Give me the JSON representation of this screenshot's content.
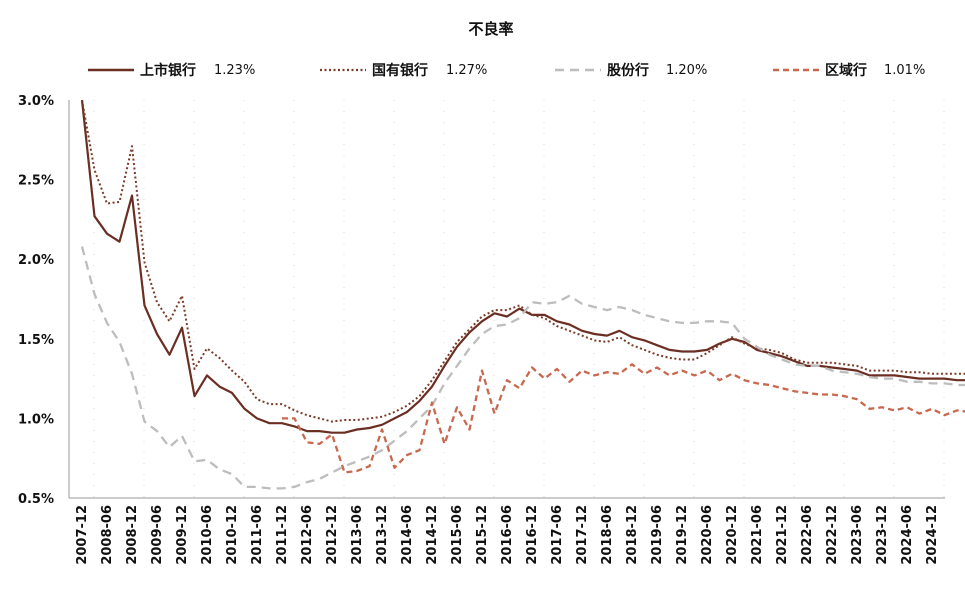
{
  "chart_data": {
    "type": "line",
    "title": "不良率",
    "xlabel": "",
    "ylabel": "",
    "ylim": [
      0.5,
      3.0
    ],
    "yticks": [
      "0.5%",
      "1.0%",
      "1.5%",
      "2.0%",
      "2.5%",
      "3.0%"
    ],
    "grid": true,
    "legend_position": "top",
    "start_quarter": "2007-12",
    "x_tick_labels": [
      "2007-12",
      "2008-06",
      "2008-12",
      "2009-06",
      "2009-12",
      "2010-06",
      "2010-12",
      "2011-06",
      "2011-12",
      "2012-06",
      "2012-12",
      "2013-06",
      "2013-12",
      "2014-06",
      "2014-12",
      "2015-06",
      "2015-12",
      "2016-06",
      "2016-12",
      "2017-06",
      "2017-12",
      "2018-06",
      "2018-12",
      "2019-06",
      "2019-12",
      "2020-06",
      "2020-12",
      "2021-06",
      "2021-12",
      "2022-06",
      "2022-12",
      "2023-06",
      "2023-12",
      "2024-06",
      "2024-12"
    ],
    "series": [
      {
        "name": "上市银行",
        "latest": "1.23%",
        "color": "#6b2e22",
        "style": "solid",
        "values": [
          3.0,
          2.27,
          2.16,
          2.11,
          2.4,
          1.71,
          1.53,
          1.4,
          1.57,
          1.14,
          1.27,
          1.2,
          1.16,
          1.06,
          1.0,
          0.97,
          0.97,
          0.95,
          0.92,
          0.92,
          0.91,
          0.91,
          0.93,
          0.94,
          0.96,
          1.0,
          1.04,
          1.11,
          1.2,
          1.33,
          1.45,
          1.54,
          1.61,
          1.66,
          1.64,
          1.69,
          1.65,
          1.65,
          1.61,
          1.59,
          1.55,
          1.53,
          1.52,
          1.55,
          1.51,
          1.49,
          1.46,
          1.43,
          1.42,
          1.42,
          1.43,
          1.47,
          1.5,
          1.48,
          1.43,
          1.41,
          1.39,
          1.36,
          1.33,
          1.33,
          1.32,
          1.31,
          1.3,
          1.27,
          1.27,
          1.27,
          1.26,
          1.25,
          1.25,
          1.25,
          1.24,
          1.24,
          1.23
        ]
      },
      {
        "name": "国有银行",
        "latest": "1.27%",
        "color": "#7a3b28",
        "style": "dotted",
        "values": [
          3.0,
          2.56,
          2.35,
          2.36,
          2.71,
          1.98,
          1.73,
          1.61,
          1.77,
          1.31,
          1.44,
          1.38,
          1.3,
          1.23,
          1.12,
          1.09,
          1.09,
          1.05,
          1.02,
          1.0,
          0.98,
          0.99,
          0.99,
          1.0,
          1.01,
          1.04,
          1.08,
          1.14,
          1.24,
          1.36,
          1.48,
          1.56,
          1.64,
          1.68,
          1.68,
          1.71,
          1.65,
          1.63,
          1.58,
          1.55,
          1.52,
          1.49,
          1.48,
          1.51,
          1.46,
          1.43,
          1.4,
          1.38,
          1.37,
          1.37,
          1.41,
          1.46,
          1.51,
          1.47,
          1.44,
          1.43,
          1.41,
          1.37,
          1.35,
          1.35,
          1.35,
          1.34,
          1.33,
          1.3,
          1.3,
          1.3,
          1.29,
          1.29,
          1.28,
          1.28,
          1.28,
          1.28,
          1.27
        ]
      },
      {
        "name": "股份行",
        "latest": "1.20%",
        "color": "#bdbdbd",
        "style": "dashed",
        "values": [
          2.08,
          1.78,
          1.6,
          1.48,
          1.28,
          0.98,
          0.92,
          0.82,
          0.89,
          0.73,
          0.74,
          0.68,
          0.65,
          0.57,
          0.57,
          0.56,
          0.56,
          0.57,
          0.6,
          0.62,
          0.66,
          0.7,
          0.73,
          0.76,
          0.8,
          0.86,
          0.92,
          1.0,
          1.08,
          1.22,
          1.33,
          1.44,
          1.53,
          1.58,
          1.59,
          1.63,
          1.73,
          1.72,
          1.73,
          1.77,
          1.72,
          1.7,
          1.68,
          1.7,
          1.68,
          1.65,
          1.63,
          1.61,
          1.6,
          1.6,
          1.61,
          1.61,
          1.6,
          1.5,
          1.45,
          1.4,
          1.37,
          1.34,
          1.33,
          1.33,
          1.3,
          1.29,
          1.28,
          1.26,
          1.25,
          1.25,
          1.23,
          1.23,
          1.22,
          1.22,
          1.21,
          1.21,
          1.2
        ]
      },
      {
        "name": "区域行",
        "latest": "1.01%",
        "color": "#c8684e",
        "style": "dashed",
        "values": [
          null,
          null,
          null,
          null,
          null,
          null,
          null,
          null,
          null,
          null,
          null,
          null,
          null,
          null,
          null,
          null,
          1.0,
          1.0,
          0.85,
          0.84,
          0.9,
          0.66,
          0.67,
          0.7,
          0.93,
          0.69,
          0.77,
          0.8,
          1.1,
          0.84,
          1.07,
          0.93,
          1.3,
          1.03,
          1.24,
          1.19,
          1.32,
          1.25,
          1.31,
          1.23,
          1.3,
          1.27,
          1.29,
          1.28,
          1.34,
          1.28,
          1.32,
          1.27,
          1.3,
          1.27,
          1.3,
          1.24,
          1.28,
          1.24,
          1.22,
          1.21,
          1.19,
          1.17,
          1.16,
          1.15,
          1.15,
          1.14,
          1.12,
          1.06,
          1.07,
          1.05,
          1.07,
          1.03,
          1.06,
          1.02,
          1.05,
          1.04,
          1.01
        ]
      }
    ]
  }
}
